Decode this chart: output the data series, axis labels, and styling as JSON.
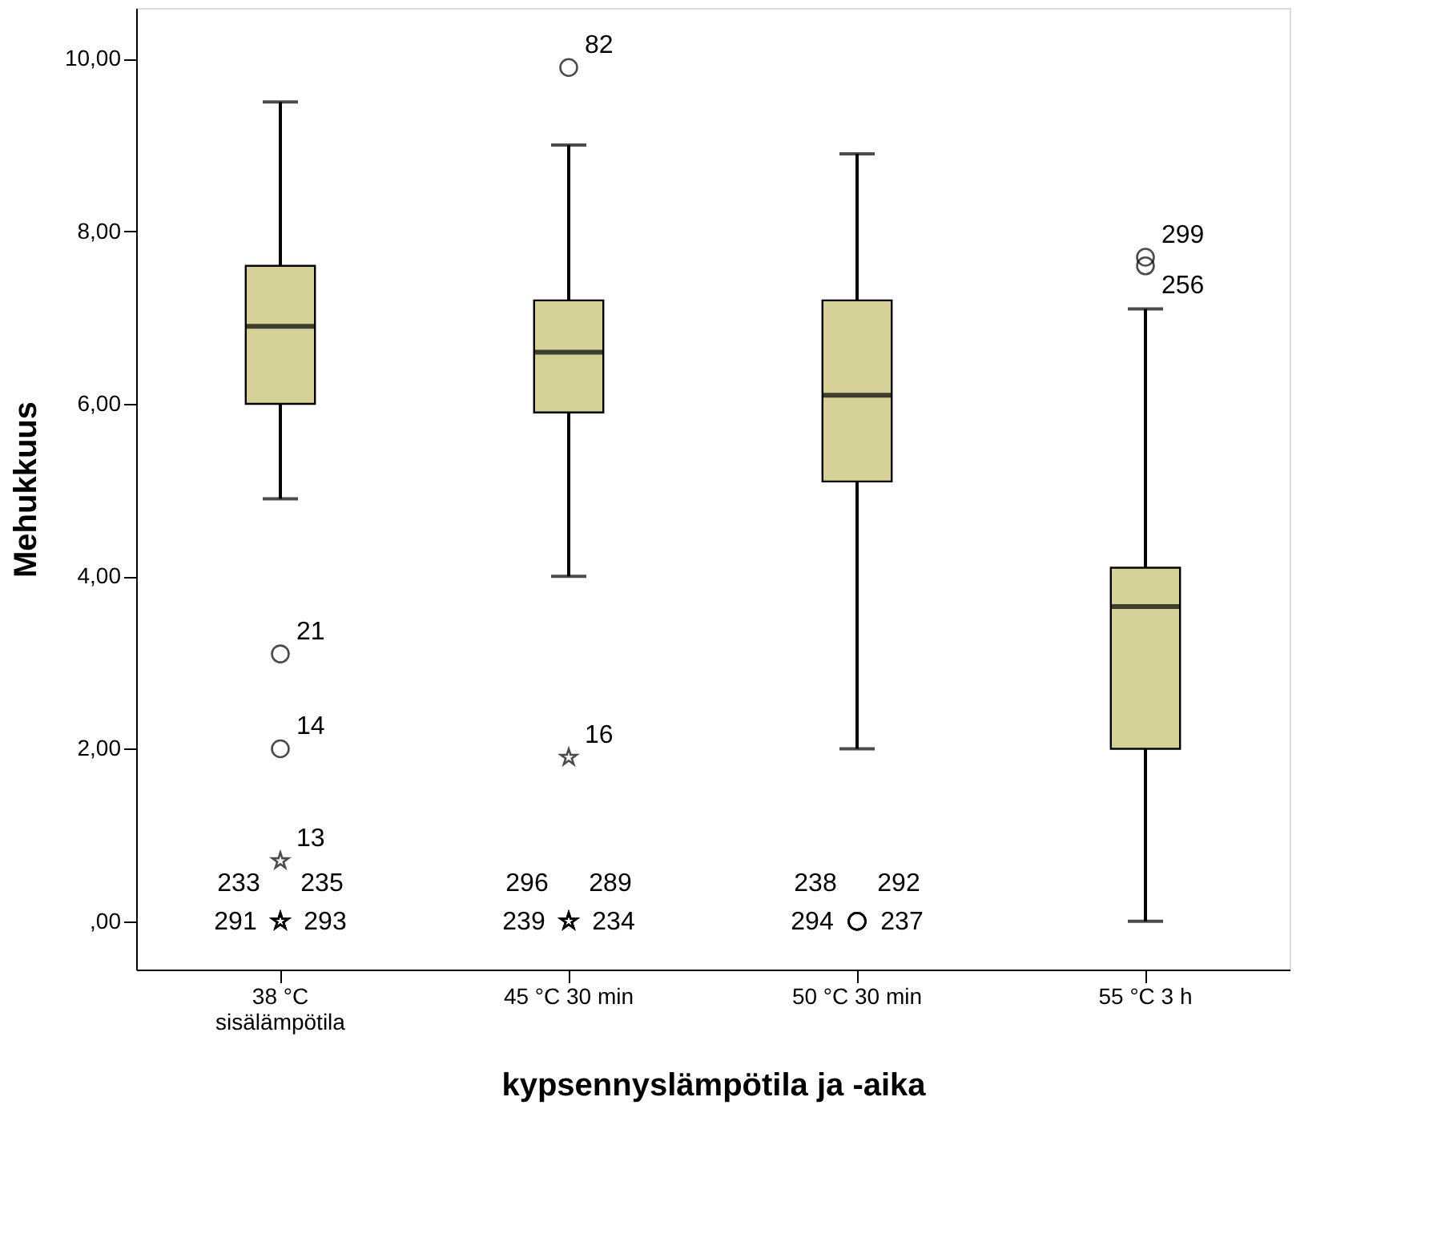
{
  "chart_data": {
    "type": "box",
    "xlabel": "kypsennyslämpötila ja -aika",
    "ylabel": "Mehukkuus",
    "categories": [
      "38 °C\nsisälämpötila",
      "45 °C 30 min",
      "50 °C 30 min",
      "55 °C 3 h"
    ],
    "ylim": [
      -0.56,
      10.59
    ],
    "yticks": [
      {
        "value": 0,
        "label": ",00"
      },
      {
        "value": 2,
        "label": "2,00"
      },
      {
        "value": 4,
        "label": "4,00"
      },
      {
        "value": 6,
        "label": "6,00"
      },
      {
        "value": 8,
        "label": "8,00"
      },
      {
        "value": 10,
        "label": "10,00"
      }
    ],
    "grid": false,
    "series": [
      {
        "type": "box",
        "color": "#d4d097",
        "boxes": [
          {
            "low": 4.9,
            "q1": 6.0,
            "median": 6.9,
            "q3": 7.6,
            "high": 9.5
          },
          {
            "low": 4.0,
            "q1": 5.9,
            "median": 6.6,
            "q3": 7.2,
            "high": 9.0
          },
          {
            "low": 2.0,
            "q1": 5.1,
            "median": 6.1,
            "q3": 7.2,
            "high": 8.9
          },
          {
            "low": 0,
            "q1": 2.0,
            "median": 3.65,
            "q3": 4.1,
            "high": 7.1
          }
        ]
      },
      {
        "type": "scatter",
        "marker": "circle",
        "color": "#000000",
        "x": [
          "38 °C\nsisälämpötila",
          "38 °C\nsisälämpötila",
          "45 °C 30 min",
          "50 °C 30 min",
          "50 °C 30 min",
          "50 °C 30 min",
          "50 °C 30 min",
          "55 °C 3 h",
          "55 °C 3 h"
        ],
        "values": [
          3.1,
          2.0,
          9.9,
          0,
          0,
          0,
          0,
          7.7,
          7.6
        ]
      },
      {
        "type": "scatter",
        "marker": "star",
        "color": "#000000",
        "x": [
          "38 °C\nsisälämpötila",
          "38 °C\nsisälämpötila",
          "38 °C\nsisälämpötila",
          "38 °C\nsisälämpötila",
          "38 °C\nsisälämpötila",
          "45 °C 30 min",
          "45 °C 30 min",
          "45 °C 30 min",
          "45 °C 30 min",
          "45 °C 30 min"
        ],
        "values": [
          0.7,
          0,
          0,
          0,
          0,
          1.9,
          0,
          0,
          0,
          0
        ]
      }
    ],
    "annotations": [
      {
        "text": "21",
        "x": "38 °C\nsisälämpötila",
        "y": 3.1
      },
      {
        "text": "14",
        "x": "38 °C\nsisälämpötila",
        "y": 2.0
      },
      {
        "text": "13",
        "x": "38 °C\nsisälämpötila",
        "y": 0.7
      },
      {
        "text": "291",
        "x": "38 °C\nsisälämpötila",
        "y": 0
      },
      {
        "text": "293",
        "x": "38 °C\nsisälämpötila",
        "y": 0
      },
      {
        "text": "233",
        "x": "38 °C\nsisälämpötila",
        "y": 0
      },
      {
        "text": "235",
        "x": "38 °C\nsisälämpötila",
        "y": 0
      },
      {
        "text": "82",
        "x": "45 °C 30 min",
        "y": 9.9
      },
      {
        "text": "16",
        "x": "45 °C 30 min",
        "y": 1.9
      },
      {
        "text": "239",
        "x": "45 °C 30 min",
        "y": 0
      },
      {
        "text": "234",
        "x": "45 °C 30 min",
        "y": 0
      },
      {
        "text": "296",
        "x": "45 °C 30 min",
        "y": 0
      },
      {
        "text": "289",
        "x": "45 °C 30 min",
        "y": 0
      },
      {
        "text": "294",
        "x": "50 °C 30 min",
        "y": 0
      },
      {
        "text": "237",
        "x": "50 °C 30 min",
        "y": 0
      },
      {
        "text": "238",
        "x": "50 °C 30 min",
        "y": 0
      },
      {
        "text": "292",
        "x": "50 °C 30 min",
        "y": 0
      },
      {
        "text": "299",
        "x": "55 °C 3 h",
        "y": 7.7
      },
      {
        "text": "256",
        "x": "55 °C 3 h",
        "y": 7.6
      }
    ]
  }
}
